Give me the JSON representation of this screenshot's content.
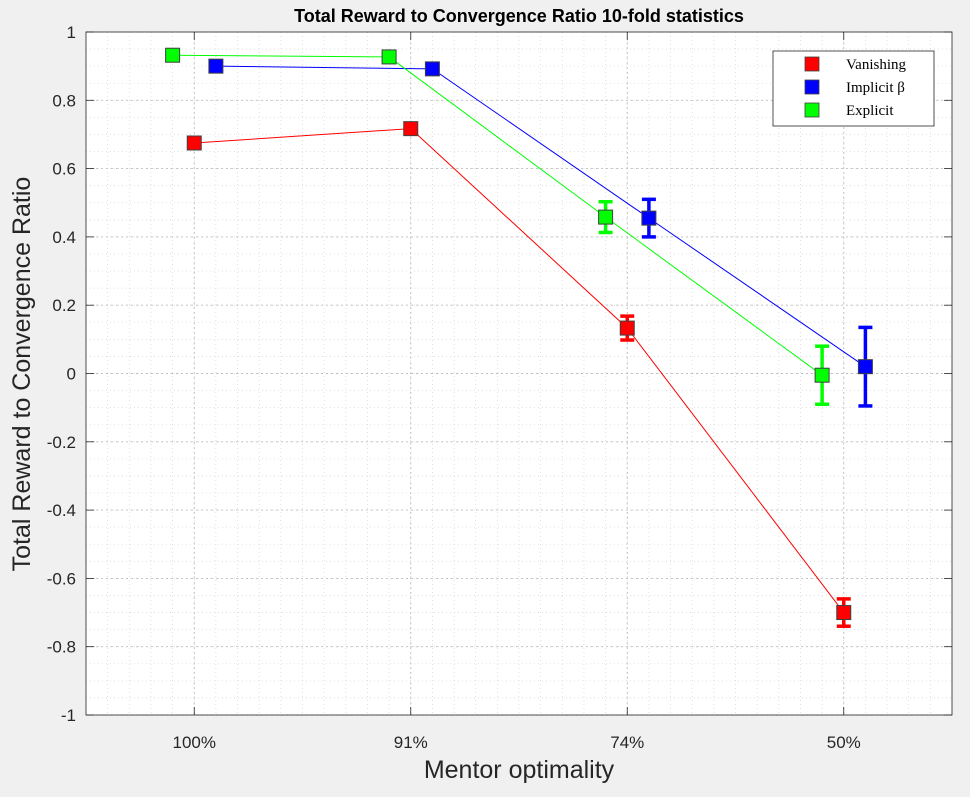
{
  "chart_data": {
    "type": "line",
    "title": "Total Reward to Convergence Ratio 10-fold statistics",
    "xlabel": "Mentor optimality",
    "ylabel": "Total Reward to Convergence Ratio",
    "categories": [
      "100%",
      "91%",
      "74%",
      "50%"
    ],
    "ylim": [
      -1,
      1
    ],
    "yticks": [
      "-1",
      "-0.8",
      "-0.6",
      "-0.4",
      "-0.2",
      "0",
      "0.2",
      "0.4",
      "0.6",
      "0.8",
      "1"
    ],
    "grid": true,
    "minor_grid": true,
    "legend_position": "top-right",
    "series": [
      {
        "name": "Vanishing",
        "color": "#ff0000",
        "x_offset": 0.0,
        "values": [
          0.675,
          0.717,
          0.133,
          -0.7
        ],
        "errors": [
          0.0,
          0.0,
          0.035,
          0.04
        ]
      },
      {
        "name": "Implicit β",
        "color": "#0000ff",
        "x_offset": 0.1,
        "values": [
          0.9,
          0.892,
          0.455,
          0.02
        ],
        "errors": [
          0.0,
          0.0,
          0.055,
          0.115
        ]
      },
      {
        "name": "Explicit",
        "color": "#00ff00",
        "x_offset": -0.1,
        "values": [
          0.932,
          0.927,
          0.458,
          -0.005
        ],
        "errors": [
          0.0,
          0.0,
          0.045,
          0.085
        ]
      }
    ]
  }
}
